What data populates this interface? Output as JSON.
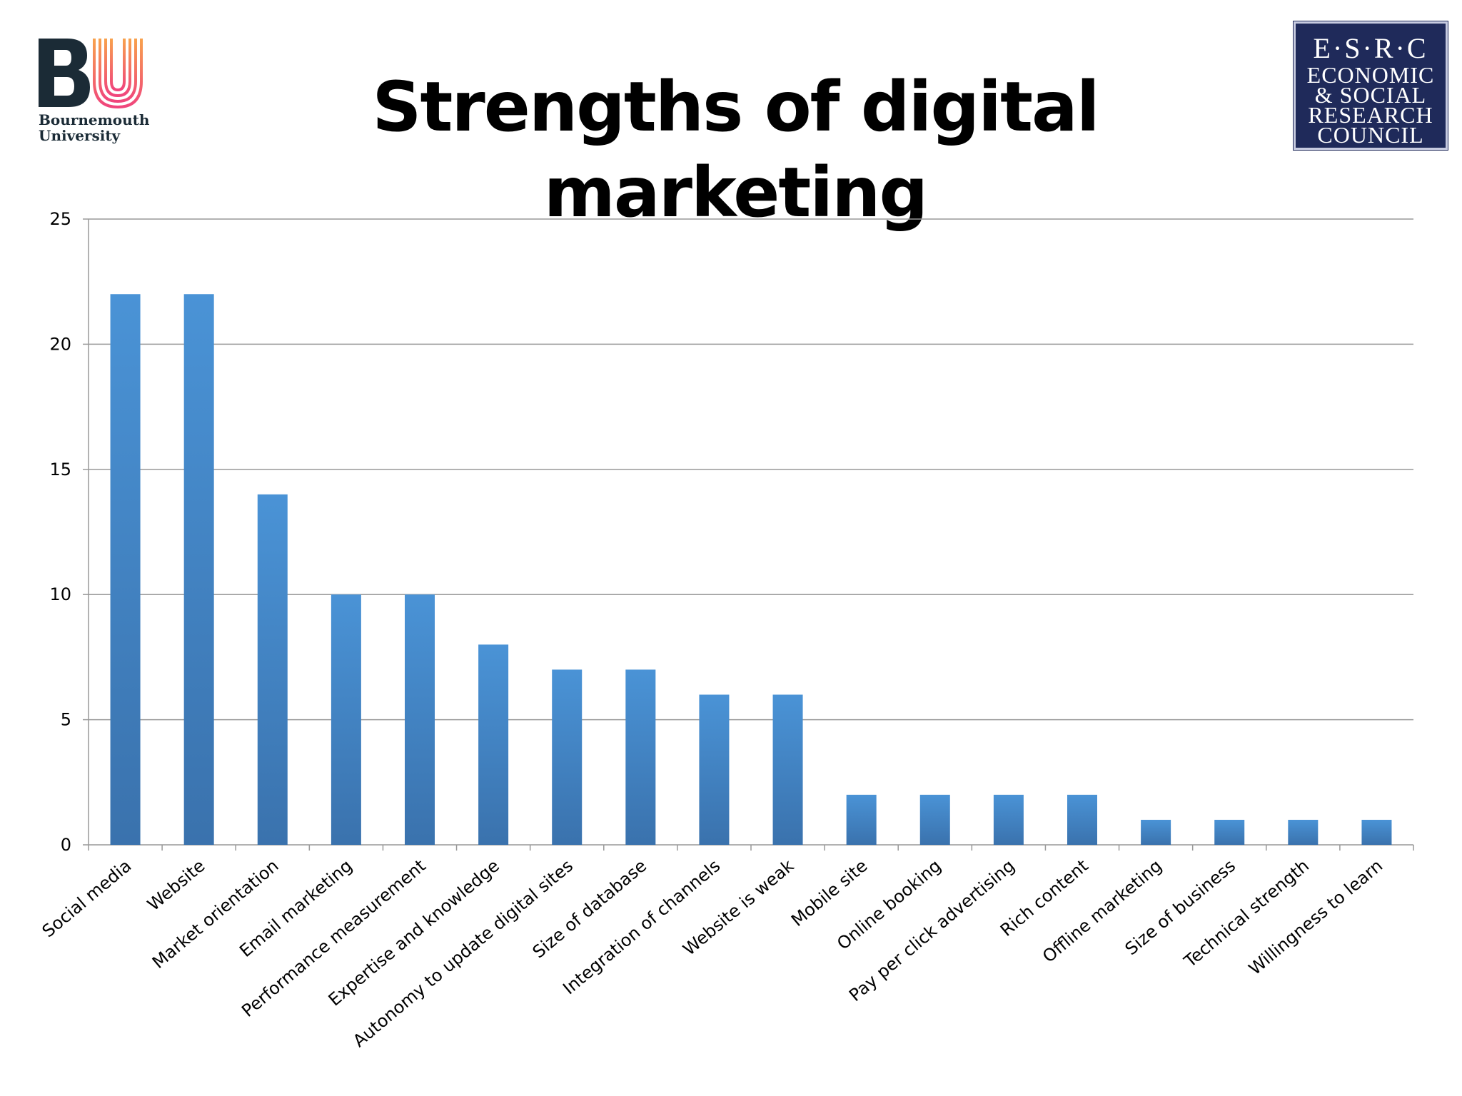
{
  "header": {
    "title": "Strengths of digital marketing",
    "bu_logo": {
      "letters": "BU",
      "name_line1": "Bournemouth",
      "name_line2": "University"
    },
    "esrc_logo": {
      "abbr": "E·S·R·C",
      "lines": [
        "ECONOMIC",
        "& SOCIAL",
        "RESEARCH",
        "COUNCIL"
      ]
    }
  },
  "colors": {
    "bar_top": "#4a93d6",
    "bar_bottom": "#3a72ad",
    "grid": "#999999",
    "bu_gradient": [
      "#f0457c",
      "#f8a24c"
    ]
  },
  "chart_data": {
    "type": "bar",
    "title": "",
    "xlabel": "",
    "ylabel": "",
    "ylim": [
      0,
      25
    ],
    "yticks": [
      0,
      5,
      10,
      15,
      20,
      25
    ],
    "grid": true,
    "categories": [
      "Social media",
      "Website",
      "Market orientation",
      "Email marketing",
      "Performance measurement",
      "Expertise and knowledge",
      "Autonomy to update digital sites",
      "Size of database",
      "Integration of channels",
      "Website is weak",
      "Mobile site",
      "Online booking",
      "Pay per click advertising",
      "Rich content",
      "Offline marketing",
      "Size of business",
      "Technical strength",
      "Willingness to learn"
    ],
    "values": [
      22,
      22,
      14,
      10,
      10,
      8,
      7,
      7,
      6,
      6,
      2,
      2,
      2,
      2,
      1,
      1,
      1,
      1
    ]
  }
}
